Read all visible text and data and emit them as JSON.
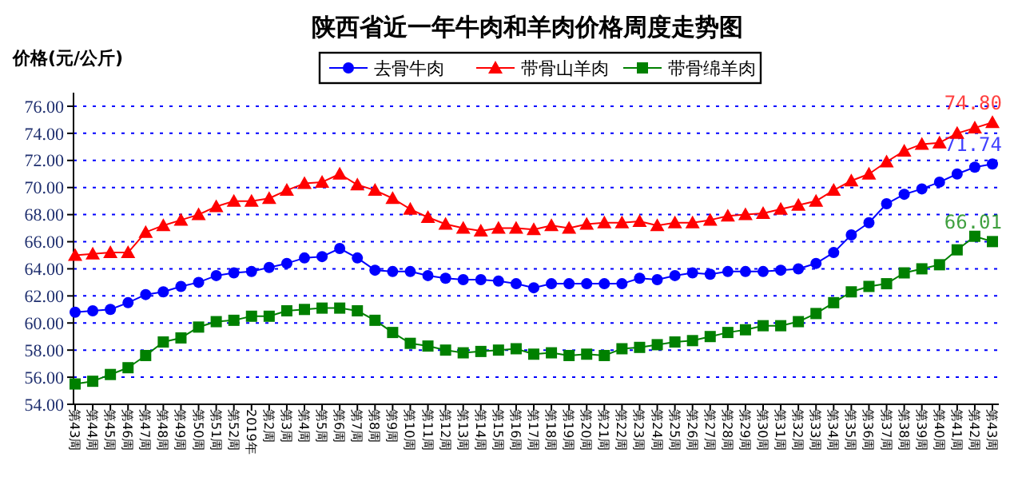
{
  "chart_data": {
    "type": "line",
    "title": "陕西省近一年牛肉和羊肉价格周度走势图",
    "ylabel": "价格(元/公斤)",
    "categories": [
      "第43周",
      "第44周",
      "第45周",
      "第46周",
      "第47周",
      "第48周",
      "第49周",
      "第50周",
      "第51周",
      "第52周",
      "2019年",
      "第2周",
      "第3周",
      "第4周",
      "第5周",
      "第6周",
      "第7周",
      "第8周",
      "第9周",
      "第10周",
      "第11周",
      "第12周",
      "第13周",
      "第14周",
      "第15周",
      "第16周",
      "第17周",
      "第18周",
      "第19周",
      "第20周",
      "第21周",
      "第22周",
      "第23周",
      "第24周",
      "第25周",
      "第26周",
      "第27周",
      "第28周",
      "第29周",
      "第30周",
      "第31周",
      "第32周",
      "第33周",
      "第34周",
      "第35周",
      "第36周",
      "第37周",
      "第38周",
      "第39周",
      "第40周",
      "第41周",
      "第42周",
      "第43周"
    ],
    "series": [
      {
        "name": "去骨牛肉",
        "color": "#0000ff",
        "marker": "circle",
        "values": [
          60.8,
          60.9,
          61.0,
          61.5,
          62.1,
          62.3,
          62.7,
          63.0,
          63.5,
          63.7,
          63.8,
          64.1,
          64.4,
          64.8,
          64.9,
          65.5,
          64.8,
          63.9,
          63.8,
          63.8,
          63.5,
          63.3,
          63.2,
          63.2,
          63.1,
          62.9,
          62.6,
          62.9,
          62.9,
          62.9,
          62.9,
          62.9,
          63.3,
          63.2,
          63.5,
          63.7,
          63.6,
          63.8,
          63.8,
          63.8,
          63.9,
          64.0,
          64.4,
          65.2,
          66.5,
          67.4,
          68.8,
          69.5,
          69.9,
          70.4,
          71.0,
          71.5,
          71.74
        ],
        "value_labels": [
          null,
          null,
          null,
          null,
          null,
          null,
          null,
          null,
          null,
          null,
          null,
          null,
          null,
          null,
          null,
          null,
          null,
          null,
          null,
          null,
          null,
          null,
          null,
          null,
          null,
          null,
          null,
          null,
          null,
          null,
          null,
          null,
          null,
          null,
          null,
          null,
          null,
          null,
          null,
          null,
          null,
          null,
          null,
          null,
          null,
          null,
          null,
          null,
          null,
          null,
          null,
          null,
          "71.74"
        ]
      },
      {
        "name": "带骨山羊肉",
        "color": "#ff0000",
        "marker": "triangle",
        "values": [
          65.0,
          65.1,
          65.2,
          65.2,
          66.7,
          67.2,
          67.6,
          68.0,
          68.6,
          69.0,
          69.0,
          69.2,
          69.8,
          70.3,
          70.4,
          71.0,
          70.2,
          69.8,
          69.2,
          68.4,
          67.8,
          67.3,
          67.0,
          66.8,
          67.0,
          67.0,
          66.9,
          67.2,
          67.0,
          67.3,
          67.4,
          67.4,
          67.5,
          67.2,
          67.4,
          67.4,
          67.6,
          67.9,
          68.0,
          68.1,
          68.4,
          68.7,
          69.0,
          69.8,
          70.5,
          71.0,
          71.9,
          72.7,
          73.2,
          73.3,
          74.0,
          74.4,
          74.8
        ],
        "value_labels": [
          null,
          null,
          null,
          null,
          null,
          null,
          null,
          null,
          null,
          null,
          null,
          null,
          null,
          null,
          null,
          null,
          null,
          null,
          null,
          null,
          null,
          null,
          null,
          null,
          null,
          null,
          null,
          null,
          null,
          null,
          null,
          null,
          null,
          null,
          null,
          null,
          null,
          null,
          null,
          null,
          null,
          null,
          null,
          null,
          null,
          null,
          null,
          null,
          null,
          null,
          null,
          null,
          "74.80"
        ]
      },
      {
        "name": "带骨绵羊肉",
        "color": "#008000",
        "marker": "square",
        "values": [
          55.5,
          55.7,
          56.2,
          56.7,
          57.6,
          58.6,
          58.9,
          59.7,
          60.1,
          60.2,
          60.5,
          60.5,
          60.9,
          61.0,
          61.1,
          61.1,
          60.9,
          60.2,
          59.3,
          58.5,
          58.3,
          58.0,
          57.8,
          57.9,
          58.0,
          58.1,
          57.7,
          57.8,
          57.6,
          57.7,
          57.6,
          58.1,
          58.2,
          58.4,
          58.6,
          58.7,
          59.0,
          59.3,
          59.5,
          59.8,
          59.8,
          60.1,
          60.7,
          61.5,
          62.3,
          62.7,
          62.9,
          63.7,
          64.0,
          64.3,
          65.4,
          66.4,
          66.01
        ],
        "value_labels": [
          null,
          null,
          null,
          null,
          null,
          null,
          null,
          null,
          null,
          null,
          null,
          null,
          null,
          null,
          null,
          null,
          null,
          null,
          null,
          null,
          null,
          null,
          null,
          null,
          null,
          null,
          null,
          null,
          null,
          null,
          null,
          null,
          null,
          null,
          null,
          null,
          null,
          null,
          null,
          null,
          null,
          null,
          null,
          null,
          null,
          null,
          null,
          null,
          null,
          null,
          null,
          null,
          "66.01"
        ]
      }
    ],
    "ylim": [
      54,
      77
    ],
    "yticks": [
      {
        "value": 54,
        "label": "54.00"
      },
      {
        "value": 56,
        "label": "56.00"
      },
      {
        "value": 58,
        "label": "58.00"
      },
      {
        "value": 60,
        "label": "60.00"
      },
      {
        "value": 62,
        "label": "62.00"
      },
      {
        "value": 64,
        "label": "64.00"
      },
      {
        "value": 66,
        "label": "66.00"
      },
      {
        "value": 68,
        "label": "68.00"
      },
      {
        "value": 70,
        "label": "70.00"
      },
      {
        "value": 72,
        "label": "72.00"
      },
      {
        "value": 74,
        "label": "74.00"
      },
      {
        "value": 76,
        "label": "76.00"
      }
    ],
    "grid": "y",
    "legend": "top",
    "line_style": "solid"
  }
}
